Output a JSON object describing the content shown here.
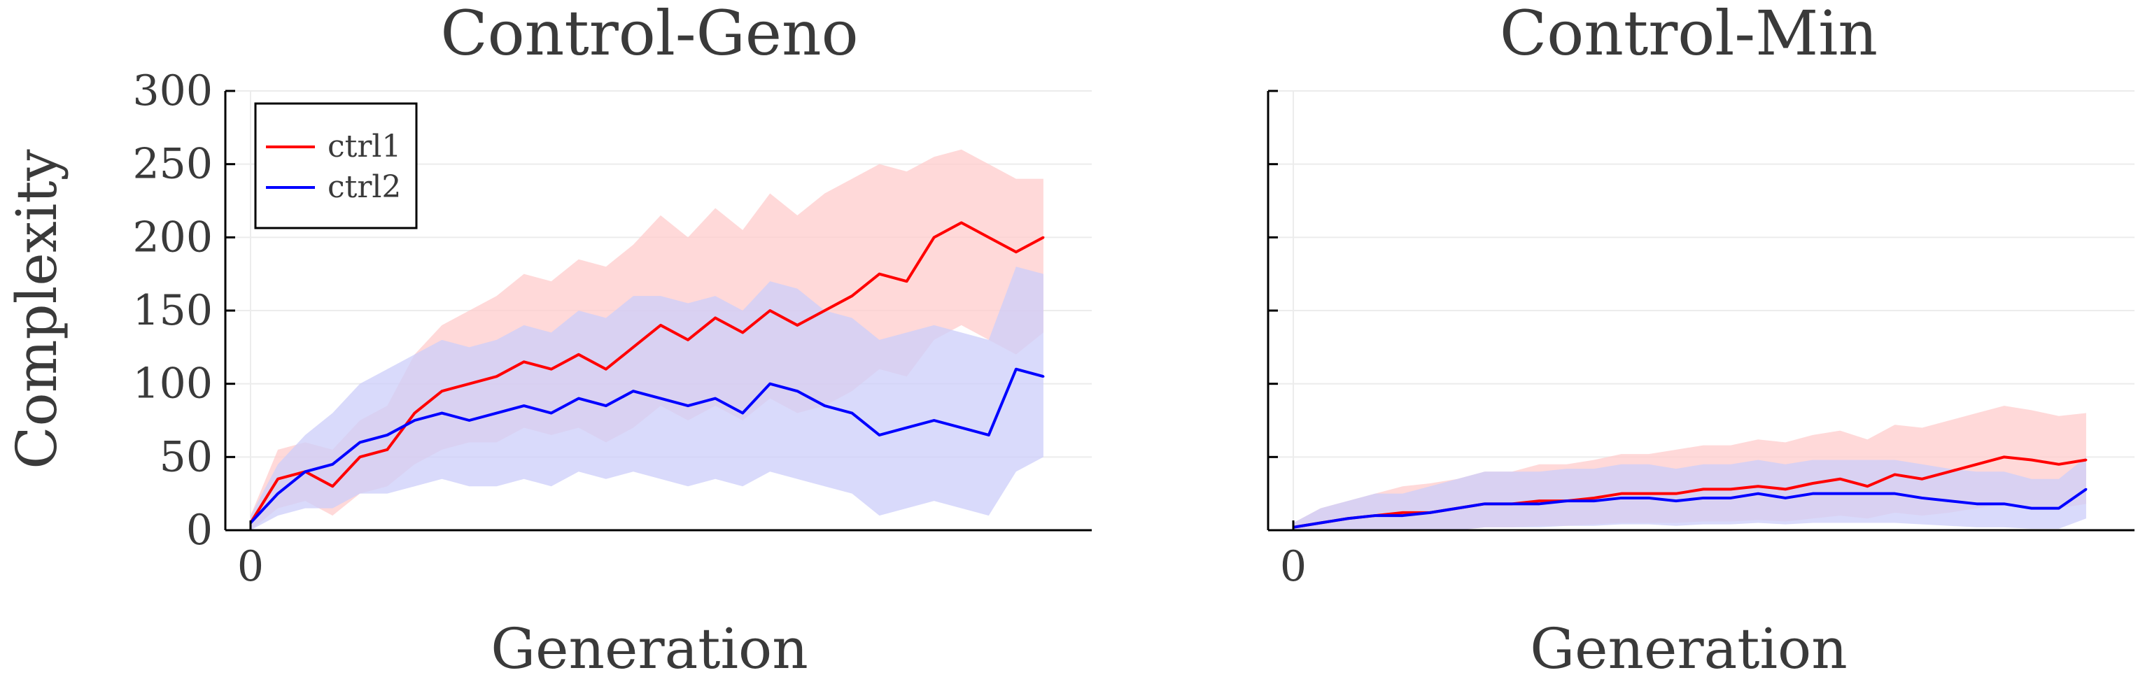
{
  "chart_data": [
    {
      "type": "line",
      "title": "Control-Geno",
      "xlabel": "Generation",
      "ylabel": "Complexity",
      "xlim": [
        0,
        600
      ],
      "ylim": [
        0,
        300
      ],
      "xticks": [
        0
      ],
      "yticks": [
        0,
        50,
        100,
        150,
        200,
        250,
        300
      ],
      "grid": true,
      "legend_position": "top-left",
      "x": [
        0,
        20,
        40,
        60,
        80,
        100,
        120,
        140,
        160,
        180,
        200,
        220,
        240,
        260,
        280,
        300,
        320,
        340,
        360,
        380,
        400,
        420,
        440,
        460,
        480,
        500,
        520,
        540,
        560,
        580
      ],
      "series": [
        {
          "name": "ctrl1",
          "color": "#ff0000",
          "band_color": "#ffcccc",
          "values": [
            5,
            35,
            40,
            30,
            50,
            55,
            80,
            95,
            100,
            105,
            115,
            110,
            120,
            110,
            125,
            140,
            130,
            145,
            135,
            150,
            140,
            150,
            160,
            175,
            170,
            200,
            210,
            200,
            190,
            200
          ],
          "band": [
            [
              0,
              10
            ],
            [
              15,
              55
            ],
            [
              20,
              60
            ],
            [
              10,
              55
            ],
            [
              25,
              75
            ],
            [
              30,
              85
            ],
            [
              45,
              120
            ],
            [
              55,
              140
            ],
            [
              60,
              150
            ],
            [
              60,
              160
            ],
            [
              70,
              175
            ],
            [
              65,
              170
            ],
            [
              70,
              185
            ],
            [
              60,
              180
            ],
            [
              70,
              195
            ],
            [
              85,
              215
            ],
            [
              75,
              200
            ],
            [
              85,
              220
            ],
            [
              75,
              205
            ],
            [
              90,
              230
            ],
            [
              80,
              215
            ],
            [
              85,
              230
            ],
            [
              95,
              240
            ],
            [
              110,
              250
            ],
            [
              105,
              245
            ],
            [
              130,
              255
            ],
            [
              140,
              260
            ],
            [
              130,
              250
            ],
            [
              120,
              240
            ],
            [
              135,
              240
            ]
          ]
        },
        {
          "name": "ctrl2",
          "color": "#0000ff",
          "band_color": "#cccdfa",
          "values": [
            5,
            25,
            40,
            45,
            60,
            65,
            75,
            80,
            75,
            80,
            85,
            80,
            90,
            85,
            95,
            90,
            85,
            90,
            80,
            100,
            95,
            85,
            80,
            65,
            70,
            75,
            70,
            65,
            110,
            105
          ],
          "band": [
            [
              0,
              10
            ],
            [
              10,
              45
            ],
            [
              15,
              65
            ],
            [
              15,
              80
            ],
            [
              25,
              100
            ],
            [
              25,
              110
            ],
            [
              30,
              120
            ],
            [
              35,
              130
            ],
            [
              30,
              125
            ],
            [
              30,
              130
            ],
            [
              35,
              140
            ],
            [
              30,
              135
            ],
            [
              40,
              150
            ],
            [
              35,
              145
            ],
            [
              40,
              160
            ],
            [
              35,
              160
            ],
            [
              30,
              155
            ],
            [
              35,
              160
            ],
            [
              30,
              150
            ],
            [
              40,
              170
            ],
            [
              35,
              165
            ],
            [
              30,
              150
            ],
            [
              25,
              145
            ],
            [
              10,
              130
            ],
            [
              15,
              135
            ],
            [
              20,
              140
            ],
            [
              15,
              135
            ],
            [
              10,
              130
            ],
            [
              40,
              180
            ],
            [
              50,
              175
            ]
          ]
        }
      ]
    },
    {
      "type": "line",
      "title": "Control-Min",
      "xlabel": "Generation",
      "ylabel": "",
      "xlim": [
        0,
        600
      ],
      "ylim": [
        0,
        300
      ],
      "xticks": [
        0
      ],
      "yticks": [
        0,
        50,
        100,
        150,
        200,
        250,
        300
      ],
      "grid": true,
      "x": [
        0,
        20,
        40,
        60,
        80,
        100,
        120,
        140,
        160,
        180,
        200,
        220,
        240,
        260,
        280,
        300,
        320,
        340,
        360,
        380,
        400,
        420,
        440,
        460,
        480,
        500,
        520,
        540,
        560,
        580
      ],
      "series": [
        {
          "name": "ctrl1",
          "color": "#ff0000",
          "band_color": "#ffcccc",
          "values": [
            2,
            5,
            8,
            10,
            12,
            12,
            15,
            18,
            18,
            20,
            20,
            22,
            25,
            25,
            25,
            28,
            28,
            30,
            28,
            32,
            35,
            30,
            38,
            35,
            40,
            45,
            50,
            48,
            45,
            48
          ],
          "band": [
            [
              0,
              5
            ],
            [
              0,
              15
            ],
            [
              0,
              20
            ],
            [
              0,
              25
            ],
            [
              0,
              30
            ],
            [
              0,
              32
            ],
            [
              0,
              35
            ],
            [
              2,
              40
            ],
            [
              2,
              40
            ],
            [
              3,
              45
            ],
            [
              3,
              45
            ],
            [
              4,
              48
            ],
            [
              5,
              52
            ],
            [
              5,
              52
            ],
            [
              5,
              55
            ],
            [
              6,
              58
            ],
            [
              6,
              58
            ],
            [
              7,
              62
            ],
            [
              6,
              60
            ],
            [
              8,
              65
            ],
            [
              10,
              68
            ],
            [
              8,
              62
            ],
            [
              12,
              72
            ],
            [
              10,
              70
            ],
            [
              12,
              75
            ],
            [
              15,
              80
            ],
            [
              18,
              85
            ],
            [
              16,
              82
            ],
            [
              15,
              78
            ],
            [
              18,
              80
            ]
          ]
        },
        {
          "name": "ctrl2",
          "color": "#0000ff",
          "band_color": "#cccdfa",
          "values": [
            2,
            5,
            8,
            10,
            10,
            12,
            15,
            18,
            18,
            18,
            20,
            20,
            22,
            22,
            20,
            22,
            22,
            25,
            22,
            25,
            25,
            25,
            25,
            22,
            20,
            18,
            18,
            15,
            15,
            28
          ],
          "band": [
            [
              0,
              5
            ],
            [
              0,
              15
            ],
            [
              0,
              20
            ],
            [
              0,
              25
            ],
            [
              0,
              25
            ],
            [
              0,
              30
            ],
            [
              0,
              35
            ],
            [
              2,
              40
            ],
            [
              2,
              40
            ],
            [
              2,
              40
            ],
            [
              3,
              42
            ],
            [
              3,
              42
            ],
            [
              4,
              45
            ],
            [
              4,
              45
            ],
            [
              3,
              42
            ],
            [
              4,
              45
            ],
            [
              4,
              45
            ],
            [
              5,
              48
            ],
            [
              4,
              45
            ],
            [
              5,
              48
            ],
            [
              5,
              48
            ],
            [
              5,
              48
            ],
            [
              5,
              48
            ],
            [
              4,
              45
            ],
            [
              3,
              42
            ],
            [
              2,
              40
            ],
            [
              2,
              40
            ],
            [
              1,
              35
            ],
            [
              1,
              35
            ],
            [
              8,
              50
            ]
          ]
        }
      ]
    }
  ]
}
